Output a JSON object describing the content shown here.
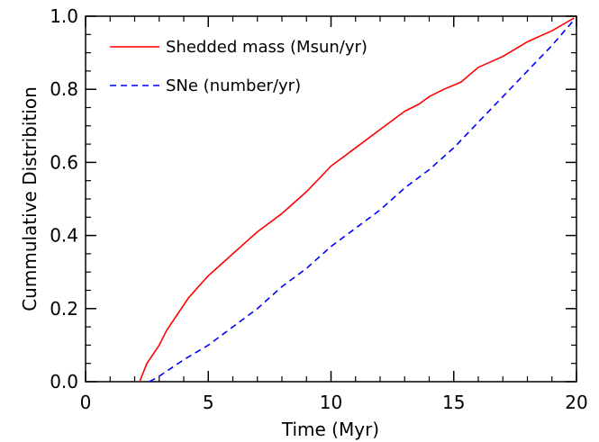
{
  "chart_data": {
    "type": "line",
    "title": "",
    "xlabel": "Time (Myr)",
    "ylabel": "Cummulative Distribition",
    "xlim": [
      0,
      20
    ],
    "ylim": [
      0,
      1
    ],
    "x_ticks": [
      0,
      5,
      10,
      15,
      20
    ],
    "x_tick_labels": [
      "0",
      "5",
      "10",
      "15",
      "20"
    ],
    "y_ticks": [
      0,
      0.2,
      0.4,
      0.6,
      0.8,
      1.0
    ],
    "y_tick_labels": [
      "0.0",
      "0.2",
      "0.4",
      "0.6",
      "0.8",
      "1.0"
    ],
    "grid": false,
    "legend_position": "top-left",
    "series": [
      {
        "name": "Shedded mass (Msun/yr)",
        "color": "#ff0000",
        "dash": "solid",
        "x": [
          2.2,
          2.5,
          3.0,
          3.3,
          3.7,
          4.2,
          4.6,
          5.0,
          5.5,
          6.0,
          6.5,
          7.0,
          7.6,
          8.0,
          8.5,
          9.0,
          10.0,
          11.0,
          12.0,
          13.0,
          13.6,
          14.0,
          14.6,
          15.3,
          16.0,
          17.0,
          18.0,
          19.0,
          19.9
        ],
        "y": [
          0.0,
          0.05,
          0.1,
          0.14,
          0.18,
          0.23,
          0.26,
          0.29,
          0.32,
          0.35,
          0.38,
          0.41,
          0.44,
          0.46,
          0.49,
          0.52,
          0.59,
          0.64,
          0.69,
          0.74,
          0.76,
          0.78,
          0.8,
          0.82,
          0.86,
          0.89,
          0.93,
          0.96,
          0.995
        ]
      },
      {
        "name": "SNe (number/yr)",
        "color": "#0000ff",
        "dash": "dashed",
        "x": [
          2.6,
          3.0,
          4.0,
          5.0,
          6.0,
          7.0,
          8.0,
          9.0,
          10.0,
          11.0,
          12.0,
          13.0,
          14.0,
          15.0,
          16.0,
          17.0,
          18.0,
          19.0,
          19.9
        ],
        "y": [
          0.0,
          0.015,
          0.06,
          0.1,
          0.15,
          0.2,
          0.26,
          0.31,
          0.37,
          0.42,
          0.47,
          0.53,
          0.58,
          0.64,
          0.71,
          0.78,
          0.85,
          0.92,
          0.99
        ]
      }
    ]
  }
}
